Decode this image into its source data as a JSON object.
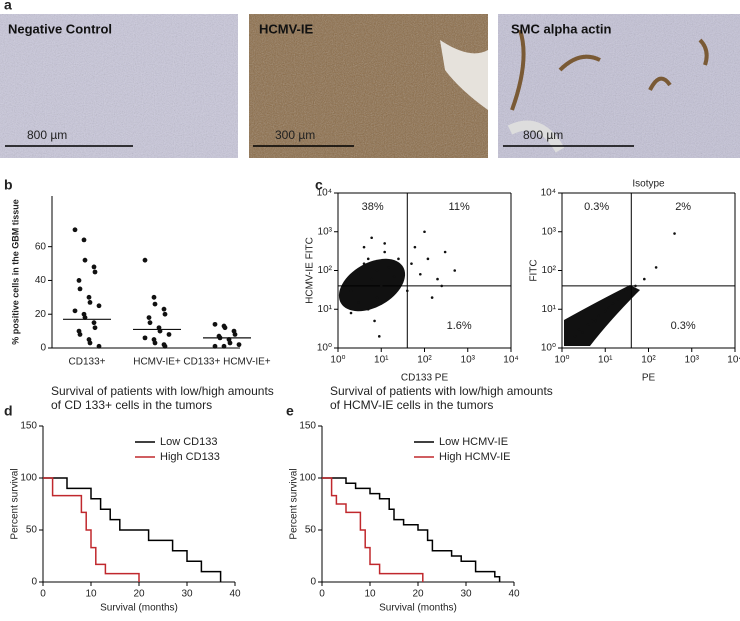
{
  "panel_labels": [
    "a",
    "b",
    "c",
    "d",
    "e"
  ],
  "image_panels": [
    {
      "label": "Negative Control",
      "scale": "800 µm"
    },
    {
      "label": "HCMV-IE",
      "scale": "300 µm"
    },
    {
      "label": "SMC alpha actin",
      "scale": "800 µm"
    }
  ],
  "chart_data": [
    {
      "type": "dot",
      "ylabel": "% positive cells in the GBM tissue",
      "categories": [
        "CD133+",
        "HCMV-IE+",
        "CD133+ HCMV-IE+"
      ],
      "values": [
        [
          70,
          64,
          52,
          48,
          45,
          40,
          35,
          30,
          27,
          25,
          22,
          20,
          18,
          15,
          12,
          10,
          8,
          5,
          3,
          1
        ],
        [
          52,
          30,
          26,
          23,
          20,
          18,
          15,
          12,
          10,
          8,
          6,
          5,
          3,
          2,
          1
        ],
        [
          14,
          13,
          12,
          10,
          8,
          7,
          6,
          5,
          3,
          2,
          1,
          1
        ]
      ],
      "medians": [
        17,
        11,
        6
      ],
      "color": "#111111",
      "ylim": [
        0,
        90
      ],
      "yticks": [
        0,
        20,
        40,
        60
      ]
    },
    {
      "type": "scatter",
      "log": true,
      "xlabel": "CD133 PE",
      "ylabel": "HCMV-IE FITC",
      "annotations": [
        "38%",
        "11%",
        "1.6%"
      ],
      "gate": [
        40,
        40
      ],
      "color": "#111111",
      "x": [
        2,
        3,
        4,
        5,
        6,
        8,
        10,
        12,
        15,
        20,
        25,
        30,
        50,
        80,
        120,
        200,
        300,
        500,
        3,
        5,
        8,
        12,
        18,
        4,
        6,
        2,
        40,
        60,
        100,
        1.5,
        9,
        7,
        150,
        250
      ],
      "y": [
        30,
        80,
        150,
        200,
        60,
        100,
        40,
        300,
        120,
        70,
        200,
        50,
        150,
        80,
        200,
        60,
        300,
        100,
        15,
        10,
        20,
        500,
        25,
        400,
        700,
        8,
        30,
        400,
        1000,
        50,
        2,
        5,
        20,
        40
      ],
      "xlim": [
        1,
        10000
      ],
      "ylim": [
        1,
        10000
      ],
      "xticks": [
        {
          "value": 1,
          "label": "10⁰"
        },
        {
          "value": 10,
          "label": "10¹"
        },
        {
          "value": 100,
          "label": "10²"
        },
        {
          "value": 1000,
          "label": "10³"
        },
        {
          "value": 10000,
          "label": "10⁴"
        }
      ],
      "yticks": [
        {
          "value": 1,
          "label": "10⁰"
        },
        {
          "value": 10,
          "label": "10¹"
        },
        {
          "value": 100,
          "label": "10²"
        },
        {
          "value": 1000,
          "label": "10³"
        },
        {
          "value": 10000,
          "label": "10⁴"
        }
      ]
    },
    {
      "type": "scatter",
      "log": true,
      "title": "Isotype",
      "xlabel": "PE",
      "ylabel": "FITC",
      "annotations": [
        "0.3%",
        "2%",
        "0.3%"
      ],
      "gate": [
        40,
        40
      ],
      "color": "#111111",
      "x": [
        1.5,
        2,
        3,
        4,
        5,
        7,
        10,
        15,
        20,
        30,
        50,
        80,
        150,
        400,
        2.5,
        6,
        12
      ],
      "y": [
        1.3,
        2,
        2.5,
        4,
        5,
        7,
        9,
        14,
        18,
        30,
        40,
        60,
        120,
        900,
        3,
        5,
        11
      ],
      "xlim": [
        1,
        10000
      ],
      "ylim": [
        1,
        10000
      ],
      "xticks": [
        {
          "value": 1,
          "label": "10⁰"
        },
        {
          "value": 10,
          "label": "10¹"
        },
        {
          "value": 100,
          "label": "10²"
        },
        {
          "value": 1000,
          "label": "10³"
        },
        {
          "value": 10000,
          "label": "10⁴"
        }
      ],
      "yticks": [
        {
          "value": 1,
          "label": "10⁰"
        },
        {
          "value": 10,
          "label": "10¹"
        },
        {
          "value": 100,
          "label": "10²"
        },
        {
          "value": 1000,
          "label": "10³"
        },
        {
          "value": 10000,
          "label": "10⁴"
        }
      ]
    },
    {
      "type": "step",
      "title": [
        "Survival of patients with low/high amounts",
        "of CD 133+ cells in the tumors"
      ],
      "xlabel": "Survival (months)",
      "ylabel": "Percent survival",
      "series": [
        {
          "name": "Low CD133",
          "color": "#000000",
          "x": [
            0,
            5,
            10,
            12,
            14,
            16,
            22,
            27,
            30,
            33,
            37
          ],
          "values": [
            100,
            90,
            80,
            70,
            60,
            50,
            40,
            30,
            20,
            10,
            0
          ]
        },
        {
          "name": "High CD133",
          "color": "#c0282d",
          "x": [
            0,
            2,
            8,
            9,
            10,
            11,
            13,
            20
          ],
          "values": [
            100,
            83,
            67,
            50,
            33,
            17,
            8,
            0
          ]
        }
      ],
      "xlim": [
        0,
        40
      ],
      "xticks": [
        0,
        10,
        20,
        30,
        40
      ],
      "ylim": [
        0,
        150
      ],
      "yticks": [
        0,
        50,
        100,
        150
      ]
    },
    {
      "type": "step",
      "title": [
        "Survival of patients with low/high amounts",
        "of HCMV-IE cells in the tumors"
      ],
      "xlabel": "Survival (months)",
      "ylabel": "Percent survival",
      "series": [
        {
          "name": "Low HCMV-IE",
          "color": "#000000",
          "x": [
            0,
            5,
            7,
            10,
            12,
            14,
            15,
            17,
            20,
            22,
            23,
            27,
            29,
            32,
            36,
            37
          ],
          "values": [
            100,
            95,
            90,
            85,
            80,
            70,
            60,
            55,
            50,
            40,
            30,
            25,
            20,
            10,
            5,
            0
          ]
        },
        {
          "name": "High HCMV-IE",
          "color": "#c0282d",
          "x": [
            0,
            2,
            3,
            5,
            8,
            9,
            10,
            12,
            21
          ],
          "values": [
            100,
            83,
            75,
            67,
            50,
            33,
            17,
            8,
            0
          ]
        }
      ],
      "xlim": [
        0,
        40
      ],
      "xticks": [
        0,
        10,
        20,
        30,
        40
      ],
      "ylim": [
        0,
        150
      ],
      "yticks": [
        0,
        50,
        100,
        150
      ]
    }
  ]
}
